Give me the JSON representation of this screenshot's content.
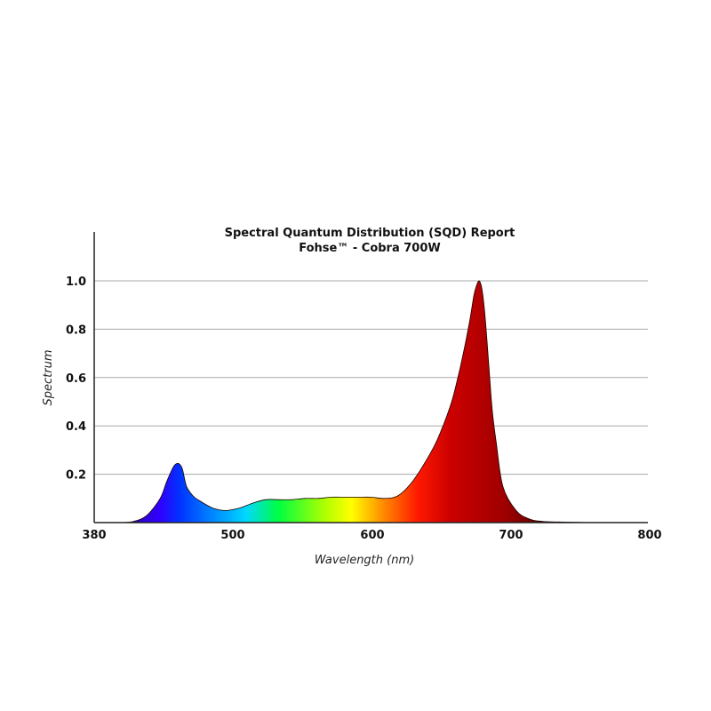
{
  "chart_data": {
    "type": "area",
    "title": "Spectral Quantum Distribution (SQD) Report",
    "subtitle": "Fohse™ - Cobra 700W",
    "xlabel": "Wavelength (nm)",
    "ylabel": "Spectrum",
    "xlim": [
      380,
      800
    ],
    "ylim": [
      0,
      1.1
    ],
    "x_ticks": [
      380,
      500,
      600,
      700,
      800
    ],
    "y_ticks": [
      0.2,
      0.4,
      0.6,
      0.8,
      1.0
    ],
    "y_tick_labels": [
      "0.2",
      "0.4",
      "0.6",
      "0.8",
      "1.0"
    ],
    "grid": true,
    "legend": "none",
    "series": [
      {
        "x": [
          380,
          400,
          410,
          420,
          430,
          435,
          440,
          443,
          445,
          447,
          450,
          455,
          460,
          470,
          480,
          490,
          500,
          510,
          520,
          530,
          540,
          550,
          560,
          570,
          580,
          590,
          600,
          610,
          620,
          630,
          640,
          650,
          655,
          660,
          665,
          668,
          670,
          672,
          674,
          676,
          678,
          680,
          682,
          685,
          690,
          700,
          710,
          720,
          740,
          760,
          800
        ],
        "y": [
          0.0,
          0.0,
          0.005,
          0.03,
          0.1,
          0.17,
          0.23,
          0.245,
          0.24,
          0.22,
          0.15,
          0.11,
          0.09,
          0.06,
          0.05,
          0.06,
          0.08,
          0.095,
          0.095,
          0.095,
          0.1,
          0.1,
          0.105,
          0.105,
          0.105,
          0.105,
          0.1,
          0.11,
          0.16,
          0.24,
          0.34,
          0.48,
          0.58,
          0.7,
          0.84,
          0.94,
          0.98,
          1.0,
          0.97,
          0.88,
          0.75,
          0.6,
          0.46,
          0.33,
          0.15,
          0.05,
          0.015,
          0.005,
          0.002,
          0.0,
          0.0
        ]
      }
    ],
    "gradient_stops": [
      {
        "nm": 380,
        "color": "#2a0a60"
      },
      {
        "nm": 430,
        "color": "#3000ff"
      },
      {
        "nm": 445,
        "color": "#0033ff"
      },
      {
        "nm": 470,
        "color": "#0088ff"
      },
      {
        "nm": 495,
        "color": "#00d8ff"
      },
      {
        "nm": 520,
        "color": "#00ff40"
      },
      {
        "nm": 555,
        "color": "#b0ff00"
      },
      {
        "nm": 575,
        "color": "#ffff00"
      },
      {
        "nm": 600,
        "color": "#ff8800"
      },
      {
        "nm": 625,
        "color": "#ff1a00"
      },
      {
        "nm": 650,
        "color": "#cc0000"
      },
      {
        "nm": 690,
        "color": "#a00000"
      },
      {
        "nm": 730,
        "color": "#500000"
      },
      {
        "nm": 800,
        "color": "#300000"
      }
    ],
    "colors": {
      "axis": "#222222",
      "grid": "#a8a8a8",
      "stroke": "#1a0000"
    }
  }
}
